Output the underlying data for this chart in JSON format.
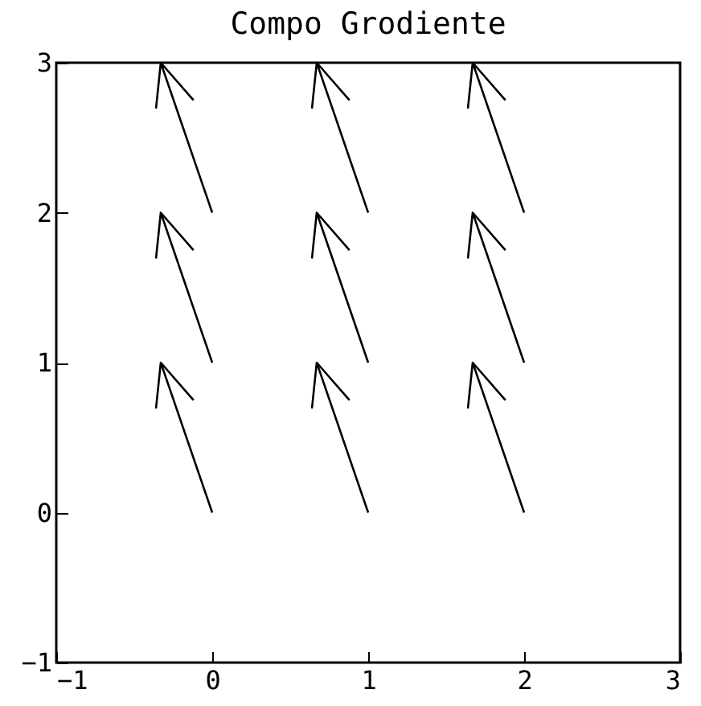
{
  "chart_data": {
    "type": "line",
    "title": "Compo Grodiente",
    "xlim": [
      -1,
      3
    ],
    "ylim": [
      -1,
      3
    ],
    "xticks": [
      -1,
      0,
      1,
      2,
      3
    ],
    "yticks": [
      -1,
      0,
      1,
      2,
      3
    ],
    "grid": false,
    "legend": false,
    "marker": "none",
    "line_style": "solid",
    "series": [
      {
        "color": "#000000",
        "x": [
          0,
          -0.33,
          -0.36,
          -0.33,
          -0.12
        ],
        "values": [
          0,
          1,
          0.7,
          1,
          0.75
        ]
      },
      {
        "color": "#000000",
        "x": [
          1,
          0.67,
          0.64,
          0.67,
          0.88
        ],
        "values": [
          0,
          1,
          0.7,
          1,
          0.75
        ]
      },
      {
        "color": "#000000",
        "x": [
          2,
          1.67,
          1.64,
          1.67,
          1.88
        ],
        "values": [
          0,
          1,
          0.7,
          1,
          0.75
        ]
      },
      {
        "color": "#000000",
        "x": [
          0,
          -0.33,
          -0.36,
          -0.33,
          -0.12
        ],
        "values": [
          1,
          2,
          1.7,
          2,
          1.75
        ]
      },
      {
        "color": "#000000",
        "x": [
          1,
          0.67,
          0.64,
          0.67,
          0.88
        ],
        "values": [
          1,
          2,
          1.7,
          2,
          1.75
        ]
      },
      {
        "color": "#000000",
        "x": [
          2,
          1.67,
          1.64,
          1.67,
          1.88
        ],
        "values": [
          1,
          2,
          1.7,
          2,
          1.75
        ]
      },
      {
        "color": "#000000",
        "x": [
          0,
          -0.33,
          -0.36,
          -0.33,
          -0.12
        ],
        "values": [
          2,
          3,
          2.7,
          3,
          2.75
        ]
      },
      {
        "color": "#000000",
        "x": [
          1,
          0.67,
          0.64,
          0.67,
          0.88
        ],
        "values": [
          2,
          3,
          2.7,
          3,
          2.75
        ]
      },
      {
        "color": "#000000",
        "x": [
          2,
          1.67,
          1.64,
          1.67,
          1.88
        ],
        "values": [
          2,
          3,
          2.7,
          3,
          2.75
        ]
      }
    ]
  }
}
